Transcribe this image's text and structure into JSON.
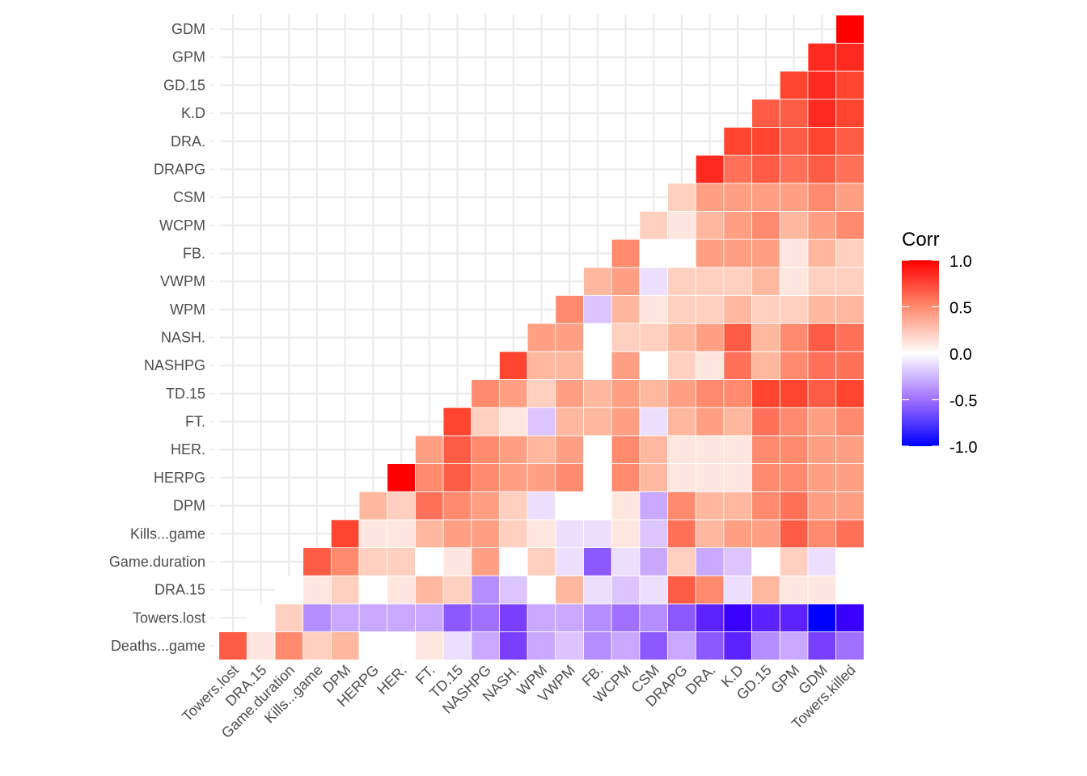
{
  "chart_data": {
    "type": "heatmap",
    "title": "",
    "xlabel": "",
    "ylabel": "",
    "x_variables": [
      "Towers.lost",
      "DRA.15",
      "Game.duration",
      "Kills...game",
      "DPM",
      "HERPG",
      "HER.",
      "FT.",
      "TD.15",
      "NASHPG",
      "NASH.",
      "WPM",
      "VWPM",
      "FB.",
      "WCPM",
      "CSM",
      "DRAPG",
      "DRA.",
      "K.D",
      "GD.15",
      "GPM",
      "GDM",
      "Towers.killed"
    ],
    "y_variables": [
      "Deaths...game",
      "Towers.lost",
      "DRA.15",
      "Game.duration",
      "Kills...game",
      "DPM",
      "HERPG",
      "HER.",
      "FT.",
      "TD.15",
      "NASHPG",
      "NASH.",
      "WPM",
      "VWPM",
      "FB.",
      "WCPM",
      "CSM",
      "DRAPG",
      "DRA.",
      "K.D",
      "GD.15",
      "GPM",
      "GDM"
    ],
    "layout": "lower-triangle",
    "values": [
      [
        0.7,
        0.1,
        0.5,
        0.2,
        0.3,
        0,
        0,
        0.1,
        -0.1,
        -0.3,
        -0.7,
        -0.3,
        -0.2,
        -0.4,
        -0.3,
        -0.6,
        -0.3,
        -0.6,
        -0.8,
        -0.4,
        -0.3,
        -0.7,
        -0.5
      ],
      [
        0,
        0.2,
        -0.4,
        -0.3,
        -0.3,
        -0.3,
        -0.3,
        -0.6,
        -0.5,
        -0.7,
        -0.3,
        -0.3,
        -0.4,
        -0.5,
        -0.4,
        -0.6,
        -0.8,
        -0.9,
        -0.8,
        -0.8,
        -1.0,
        -0.9
      ],
      [
        0,
        0.1,
        0.2,
        0,
        0.1,
        0.3,
        0.2,
        -0.4,
        -0.2,
        0,
        0.3,
        -0.1,
        -0.2,
        -0.1,
        0.7,
        0.5,
        -0.1,
        0.3,
        0.1,
        0.1,
        0
      ],
      [
        0.7,
        0.5,
        0.2,
        0.2,
        0,
        0.1,
        0.4,
        0,
        0.2,
        -0.1,
        -0.6,
        -0.1,
        -0.3,
        0.2,
        -0.3,
        -0.2,
        0,
        0.2,
        -0.1,
        0
      ],
      [
        0.8,
        0.1,
        0.1,
        0.3,
        0.4,
        0.4,
        0.2,
        0.1,
        -0.1,
        -0.1,
        0.1,
        -0.2,
        0.6,
        0.3,
        0.4,
        0.4,
        0.7,
        0.5,
        0.6
      ],
      [
        0.3,
        0.2,
        0.6,
        0.5,
        0.4,
        0.2,
        -0.1,
        0,
        0,
        0.1,
        -0.3,
        0.5,
        0.3,
        0.3,
        0.5,
        0.6,
        0.4,
        0.4
      ],
      [
        1.0,
        0.5,
        0.7,
        0.5,
        0.4,
        0.4,
        0.5,
        0,
        0.5,
        0.3,
        0.1,
        0.1,
        0.1,
        0.5,
        0.5,
        0.4,
        0.4
      ],
      [
        0.4,
        0.7,
        0.5,
        0.4,
        0.3,
        0.4,
        0,
        0.5,
        0.3,
        0.1,
        0.1,
        0.1,
        0.5,
        0.5,
        0.4,
        0.4
      ],
      [
        0.8,
        0.2,
        0.1,
        -0.2,
        0.3,
        0.3,
        0.4,
        -0.1,
        0.3,
        0.4,
        0.3,
        0.6,
        0.5,
        0.4,
        0.5
      ],
      [
        0.5,
        0.4,
        0.2,
        0.4,
        0.3,
        0.4,
        0.3,
        0.4,
        0.5,
        0.5,
        0.8,
        0.8,
        0.7,
        0.8
      ],
      [
        0.8,
        0.3,
        0.3,
        0,
        0.4,
        0,
        0.2,
        0.1,
        0.6,
        0.3,
        0.5,
        0.6,
        0.6
      ],
      [
        0.4,
        0.4,
        0,
        0.2,
        0.2,
        0.3,
        0.4,
        0.7,
        0.3,
        0.5,
        0.7,
        0.6
      ],
      [
        0.5,
        -0.2,
        0.3,
        0.1,
        0.2,
        0.2,
        0.3,
        0.2,
        0.2,
        0.3,
        0.3
      ],
      [
        0.3,
        0.4,
        -0.1,
        0.2,
        0.2,
        0.2,
        0.3,
        0.1,
        0.2,
        0.2
      ],
      [
        0.5,
        0,
        0,
        0.4,
        0.4,
        0.4,
        0.1,
        0.3,
        0.2
      ],
      [
        0.2,
        0.1,
        0.3,
        0.4,
        0.5,
        0.3,
        0.4,
        0.5
      ],
      [
        0.2,
        0.4,
        0.4,
        0.4,
        0.4,
        0.5,
        0.4
      ],
      [
        0.9,
        0.6,
        0.7,
        0.6,
        0.7,
        0.6
      ],
      [
        0.8,
        0.8,
        0.7,
        0.8,
        0.7
      ],
      [
        0.7,
        0.7,
        0.9,
        0.8
      ],
      [
        0.8,
        0.9,
        0.8
      ],
      [
        0.9,
        0.9
      ],
      [
        1.0
      ]
    ],
    "color_scale": {
      "low": "#0000FF",
      "mid": "#FFFFFF",
      "high": "#FF0000",
      "limits": [
        -1,
        1
      ]
    },
    "legend": {
      "title": "Corr",
      "ticks": [
        "1.0",
        "0.5",
        "0.0",
        "-0.5",
        "-1.0"
      ],
      "tick_values": [
        1.0,
        0.5,
        0.0,
        -0.5,
        -1.0
      ],
      "position": "right"
    },
    "grid": true
  }
}
